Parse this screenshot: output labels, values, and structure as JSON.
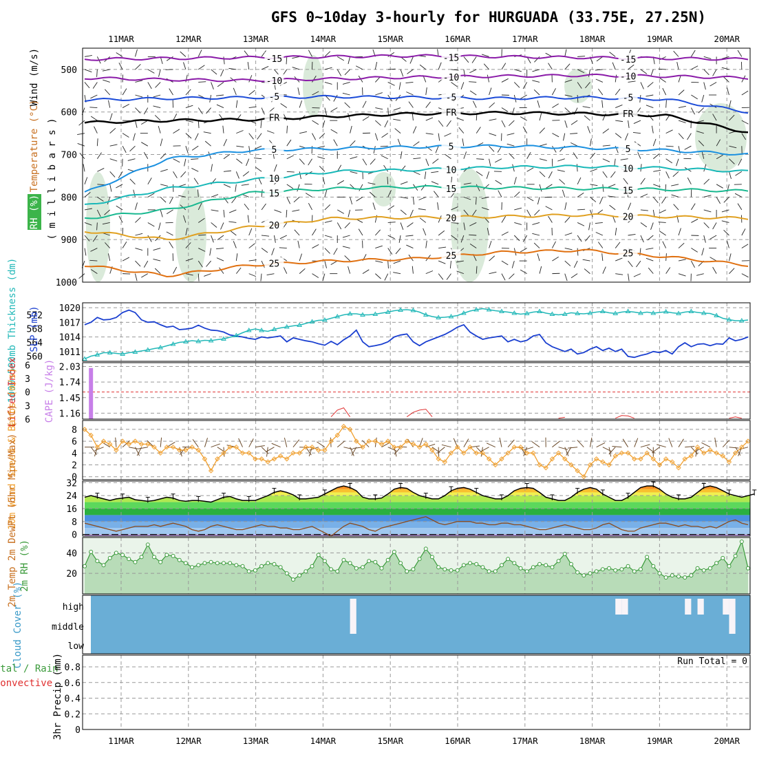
{
  "title": "GFS 0~10day 3-hourly for HURGUADA (33.75E, 27.25N)",
  "dates": [
    "11MAR",
    "12MAR",
    "13MAR",
    "14MAR",
    "15MAR",
    "16MAR",
    "17MAR",
    "18MAR",
    "19MAR",
    "20MAR"
  ],
  "run_total_label": "Run Total = 0",
  "colors": {
    "rh_green": "#d6e8d6",
    "slp": "#1a3fd0",
    "thickness": "#22b8b8",
    "cape": "#c77fe8",
    "lifted_index": "#e03030",
    "wind_speed": "#f0a030",
    "barb": "#6b4a2a",
    "cloud": "#6aaed6",
    "dewpoint": "#8b4a1a",
    "temp": "#000000",
    "rh2m": "#3a9a3a"
  },
  "chart_data": [
    {
      "id": "upper-air",
      "type": "heatmap",
      "ylabel_parts": [
        "RH (%)",
        "Temperature (°C)",
        "Wind (m/s)"
      ],
      "ylabel2": "( m i l l i b a r s )",
      "yticks": [
        500,
        600,
        700,
        800,
        900,
        1000
      ],
      "ylim": [
        1000,
        450
      ],
      "isotherm_labels": [
        {
          "level": "-15",
          "name": "-15"
        },
        {
          "level": "-10",
          "name": "-10"
        },
        {
          "level": "-5",
          "name": "-5"
        },
        {
          "level": "0",
          "name": "FR"
        },
        {
          "level": "5",
          "name": "5"
        },
        {
          "level": "10",
          "name": "10"
        },
        {
          "level": "15",
          "name": "15"
        },
        {
          "level": "20",
          "name": "20"
        },
        {
          "level": "25",
          "name": "25"
        }
      ],
      "isotherm_pressure_mb": {
        "-15": [
          476,
          474,
          472,
          470,
          468,
          470,
          472,
          474,
          476
        ],
        "-10": [
          520,
          524,
          526,
          522,
          518,
          516,
          514,
          516,
          520
        ],
        "-5": [
          572,
          568,
          566,
          564,
          566,
          568,
          566,
          570,
          600
        ],
        "0": [
          625,
          620,
          618,
          610,
          604,
          602,
          604,
          608,
          648
        ],
        "5": [
          790,
          710,
          690,
          686,
          682,
          680,
          684,
          690,
          700
        ],
        "10": [
          820,
          780,
          760,
          740,
          736,
          730,
          728,
          732,
          740
        ],
        "15": [
          850,
          830,
          790,
          780,
          776,
          778,
          780,
          782,
          786
        ],
        "20": [
          880,
          900,
          870,
          850,
          848,
          846,
          842,
          846,
          850
        ],
        "25": [
          960,
          985,
          960,
          950,
          945,
          930,
          925,
          940,
          960
        ]
      }
    },
    {
      "id": "slp-thickness",
      "type": "line",
      "ylabel_left": "1000~500mb Thickness (dm)",
      "ylabel_right": "SLP (mb)",
      "yticks_left": [
        560,
        564,
        568,
        572
      ],
      "yticks_right": [
        1011,
        1014,
        1017,
        1020
      ],
      "ylim_left": [
        558.5,
        575.5
      ],
      "ylim_right": [
        1009,
        1021
      ],
      "series": [
        {
          "name": "SLP (mb)",
          "values": [
            1016.5,
            1017,
            1018,
            1017.5,
            1017.6,
            1018,
            1019,
            1019.5,
            1019,
            1017.5,
            1017,
            1017.1,
            1016.5,
            1016,
            1016.2,
            1015.5,
            1015.6,
            1015.8,
            1016.4,
            1015.8,
            1015.4,
            1015.3,
            1015,
            1014.4,
            1014.2,
            1014,
            1013.7,
            1013.5,
            1014,
            1013.8,
            1014,
            1014.2,
            1013,
            1013.8,
            1013.5,
            1013.2,
            1013,
            1012.6,
            1012.3,
            1013.1,
            1012.4,
            1013.4,
            1014.2,
            1015.4,
            1013,
            1012,
            1012.2,
            1012.5,
            1013,
            1014,
            1014.4,
            1014.6,
            1013,
            1012.2,
            1013,
            1013.5,
            1014,
            1014.5,
            1015.2,
            1016,
            1016.5,
            1015,
            1014.2,
            1013.5,
            1013.8,
            1014,
            1014.2,
            1013,
            1013.5,
            1013,
            1013.3,
            1014.2,
            1014.5,
            1012.8,
            1012,
            1011.5,
            1011,
            1011.5,
            1010.5,
            1010.8,
            1011.5,
            1012,
            1011.2,
            1011.7,
            1011,
            1011.5,
            1010,
            1009.8,
            1010.2,
            1010.5,
            1011,
            1010.8,
            1011.2,
            1010.5,
            1012,
            1012.8,
            1012,
            1012.5,
            1012.6,
            1012.2,
            1012.6,
            1012.5,
            1013.8,
            1013.2,
            1013.5,
            1014
          ]
        },
        {
          "name": "1000-500mb Thickness (dm)",
          "values": [
            559.2,
            560,
            560.4,
            561,
            561,
            560.8,
            560.6,
            561,
            561.2,
            561.5,
            561.8,
            562.2,
            562.5,
            563,
            563.5,
            564,
            564.2,
            564.5,
            564.3,
            564.6,
            564.5,
            564.8,
            565,
            565.5,
            566,
            566.8,
            567.5,
            567.9,
            567.5,
            567.2,
            567.8,
            568.2,
            568.5,
            568.8,
            569,
            569.5,
            570,
            570.4,
            570.5,
            571,
            571.5,
            572,
            572.3,
            572.3,
            572,
            572,
            572.2,
            572.5,
            572.8,
            573.2,
            573.4,
            573.5,
            573.3,
            572.8,
            572,
            571.5,
            571.2,
            571.3,
            571.5,
            571.8,
            572.5,
            573.1,
            573.5,
            573.8,
            573.5,
            573.2,
            573,
            572.8,
            572.5,
            572.2,
            572.4,
            572.8,
            573,
            572.5,
            572.2,
            572,
            572.2,
            572.6,
            572.4,
            572.3,
            572.5,
            572.8,
            573,
            572.6,
            572.4,
            572.8,
            573,
            572.8,
            572.5,
            572.8,
            572.5,
            572.7,
            572.9,
            572.6,
            572.4,
            572.8,
            573,
            572.7,
            572.5,
            572.4,
            571.8,
            571,
            570.6,
            570.3,
            570.3,
            570.5
          ]
        }
      ]
    },
    {
      "id": "stability",
      "type": "bar",
      "ylabel_left": "Lifted Index",
      "ylabel_right": "CAPE (J/kg)",
      "yticks_left": [
        -6,
        -3,
        0,
        3,
        6
      ],
      "yticks_right": [
        1.16,
        1.45,
        1.74,
        2.03
      ],
      "ylim_left": [
        -6.5,
        6
      ],
      "ylim_right": [
        1.05,
        2.1
      ],
      "cape_bars": [
        {
          "step": 1,
          "value": 2.0
        }
      ],
      "lifted_index_spikes": [
        {
          "start_step": 39,
          "values": [
            5.5,
            4,
            3.5,
            5.5
          ]
        },
        {
          "start_step": 51,
          "values": [
            5.5,
            4.5,
            4,
            3.8,
            5.5
          ]
        },
        {
          "start_step": 75,
          "values": [
            5.8,
            5.6
          ]
        },
        {
          "start_step": 84,
          "values": [
            5.8,
            5.2,
            5.3,
            5.8
          ]
        },
        {
          "start_step": 102,
          "values": [
            5.8,
            5.5,
            5.8
          ]
        }
      ]
    },
    {
      "id": "wind10m",
      "type": "line",
      "ylabel": "10m Wind Speed & Barbs (m/s)",
      "yticks": [
        0,
        2,
        4,
        6,
        8
      ],
      "ylim": [
        -0.5,
        9.5
      ],
      "series": [
        {
          "name": "10m Wind Speed",
          "values": [
            8,
            7,
            5,
            6,
            5.5,
            4.5,
            6,
            5.5,
            6,
            5.5,
            5.5,
            5,
            4,
            5,
            5,
            4.5,
            4.5,
            5,
            4.5,
            3,
            1,
            3,
            4,
            5,
            5,
            4,
            4,
            3,
            3,
            2.5,
            3,
            3.5,
            3,
            4,
            4,
            5,
            5,
            4.5,
            4.5,
            6,
            7,
            8.5,
            8,
            6,
            5,
            6,
            6,
            5.5,
            6,
            5,
            5,
            6,
            5.5,
            5,
            5.5,
            4.5,
            3,
            2.5,
            4,
            5,
            4,
            5,
            4,
            4,
            3,
            2,
            3,
            4,
            5,
            5,
            4,
            4,
            2,
            1.5,
            3,
            4,
            3,
            2,
            1,
            0,
            2,
            3,
            2.5,
            2,
            3.5,
            4,
            4,
            3,
            3,
            4,
            3,
            2,
            3,
            2.5,
            1.5,
            3,
            3.5,
            5,
            4,
            4.5,
            4,
            3.5,
            2.5,
            4,
            5,
            6
          ]
        }
      ]
    },
    {
      "id": "temp2m",
      "type": "area",
      "ylabel": "2m Temp 2m DewPt (6hr Min/Max) (°C)",
      "yticks": [
        0,
        8,
        16,
        24,
        32
      ],
      "ylim": [
        -1,
        33
      ],
      "temp_bands": [
        {
          "from": -1,
          "to": 0,
          "color": "#c8a0f0"
        },
        {
          "from": 0,
          "to": 4,
          "color": "#a0c8f0"
        },
        {
          "from": 4,
          "to": 8,
          "color": "#78b0e8"
        },
        {
          "from": 8,
          "to": 12,
          "color": "#4a90e0"
        },
        {
          "from": 12,
          "to": 16,
          "color": "#2ab040"
        },
        {
          "from": 16,
          "to": 20,
          "color": "#5cd85c"
        },
        {
          "from": 20,
          "to": 24,
          "color": "#b0e850"
        },
        {
          "from": 24,
          "to": 26,
          "color": "#f0f050"
        },
        {
          "from": 26,
          "to": 28,
          "color": "#f8c030"
        },
        {
          "from": 28,
          "to": 30,
          "color": "#f89020"
        },
        {
          "from": 30,
          "to": 40,
          "color": "#e85010"
        }
      ],
      "series": [
        {
          "name": "2m Temp",
          "values": [
            23,
            24,
            23,
            22,
            21,
            22,
            22.5,
            23,
            21.5,
            21,
            20.5,
            21,
            22,
            23,
            22.5,
            21,
            20.5,
            21,
            21,
            20.5,
            20,
            21.5,
            23,
            23.5,
            22,
            21,
            21,
            21,
            22.5,
            24,
            26,
            27,
            26,
            24.5,
            22,
            22,
            22.5,
            23,
            25,
            27,
            29,
            30,
            29,
            27,
            23,
            22,
            22,
            22.5,
            25,
            28,
            29,
            28.5,
            26,
            24,
            23,
            22,
            22,
            24,
            27,
            28.5,
            29,
            28,
            26,
            24,
            23,
            22,
            22,
            24,
            27,
            28.5,
            29,
            28.5,
            26,
            23,
            22,
            21,
            21,
            23,
            26,
            28,
            29,
            28,
            25,
            23,
            21,
            21,
            23,
            26,
            29,
            30,
            30,
            28,
            25,
            23,
            22,
            22,
            23,
            26,
            29,
            30,
            29,
            27,
            25,
            24,
            23,
            24,
            25
          ]
        },
        {
          "name": "2m DewPt",
          "values": [
            7,
            6,
            5,
            4,
            3,
            2,
            3,
            4,
            5,
            5,
            5,
            6,
            5,
            6,
            7,
            6,
            5,
            3,
            2,
            3,
            5,
            6,
            5,
            4,
            3,
            3,
            4,
            5,
            6,
            5,
            5,
            4,
            4,
            3,
            3,
            4,
            5,
            3,
            1,
            -1,
            2,
            5,
            7,
            6,
            5,
            3,
            2,
            4,
            5,
            6,
            7,
            8,
            9,
            10,
            11,
            9,
            7,
            6,
            7,
            8,
            8,
            8,
            7,
            7,
            6,
            6,
            7,
            7,
            6,
            6,
            5,
            4,
            3,
            3,
            4,
            5,
            6,
            5,
            4,
            3,
            3,
            4,
            6,
            7,
            5,
            3,
            2,
            2,
            4,
            5,
            6,
            7,
            7,
            6,
            5,
            6,
            5,
            5,
            4,
            5,
            4,
            6,
            8,
            9,
            7,
            6
          ]
        }
      ]
    },
    {
      "id": "rh2m",
      "type": "area",
      "ylabel": "2m RH (%)",
      "yticks": [
        20,
        40
      ],
      "ylim": [
        0,
        55
      ],
      "series": [
        {
          "name": "2m RH",
          "values": [
            27,
            41,
            32,
            28,
            35,
            40,
            38,
            34,
            31,
            36,
            48,
            36,
            31,
            38,
            37,
            33,
            30,
            26,
            28,
            30,
            31,
            30,
            30,
            30,
            28,
            27,
            22,
            23,
            27,
            30,
            29,
            26,
            20,
            14,
            18,
            22,
            27,
            38,
            32,
            24,
            22,
            33,
            30,
            25,
            26,
            32,
            31,
            25,
            33,
            41,
            30,
            22,
            24,
            34,
            44,
            36,
            26,
            24,
            23,
            23,
            28,
            30,
            29,
            26,
            22,
            22,
            28,
            34,
            30,
            25,
            22,
            26,
            29,
            28,
            26,
            32,
            39,
            29,
            21,
            18,
            20,
            22,
            24,
            25,
            23,
            24,
            27,
            22,
            24,
            36,
            27,
            20,
            16,
            18,
            17,
            16,
            18,
            25,
            23,
            25,
            30,
            35,
            27,
            37,
            51,
            25
          ]
        }
      ]
    },
    {
      "id": "cloud",
      "type": "heatmap",
      "ylabel": "Cloud Cover (%)",
      "yticks": [
        "high",
        "middle",
        "low"
      ],
      "gaps": [
        {
          "start_step": 42,
          "end_step": 43,
          "layer": "high"
        },
        {
          "start_step": 42,
          "end_step": 43,
          "layer": "middle"
        },
        {
          "start_step": 84,
          "end_step": 85,
          "layer": "high"
        },
        {
          "start_step": 85,
          "end_step": 86,
          "layer": "high"
        },
        {
          "start_step": 95,
          "end_step": 96,
          "layer": "high"
        },
        {
          "start_step": 97,
          "end_step": 98,
          "layer": "high"
        },
        {
          "start_step": 101,
          "end_step": 102,
          "layer": "high"
        },
        {
          "start_step": 102,
          "end_step": 103,
          "layer": "high"
        },
        {
          "start_step": 102,
          "end_step": 103,
          "layer": "middle"
        }
      ]
    },
    {
      "id": "precip",
      "type": "bar",
      "ylabel": "3hr Precip (mm)",
      "legend_left": [
        "Total / Rain",
        "Convective"
      ],
      "yticks": [
        0,
        0.2,
        0.4,
        0.6,
        0.8
      ],
      "ylim": [
        0,
        0.95
      ],
      "values": []
    }
  ]
}
